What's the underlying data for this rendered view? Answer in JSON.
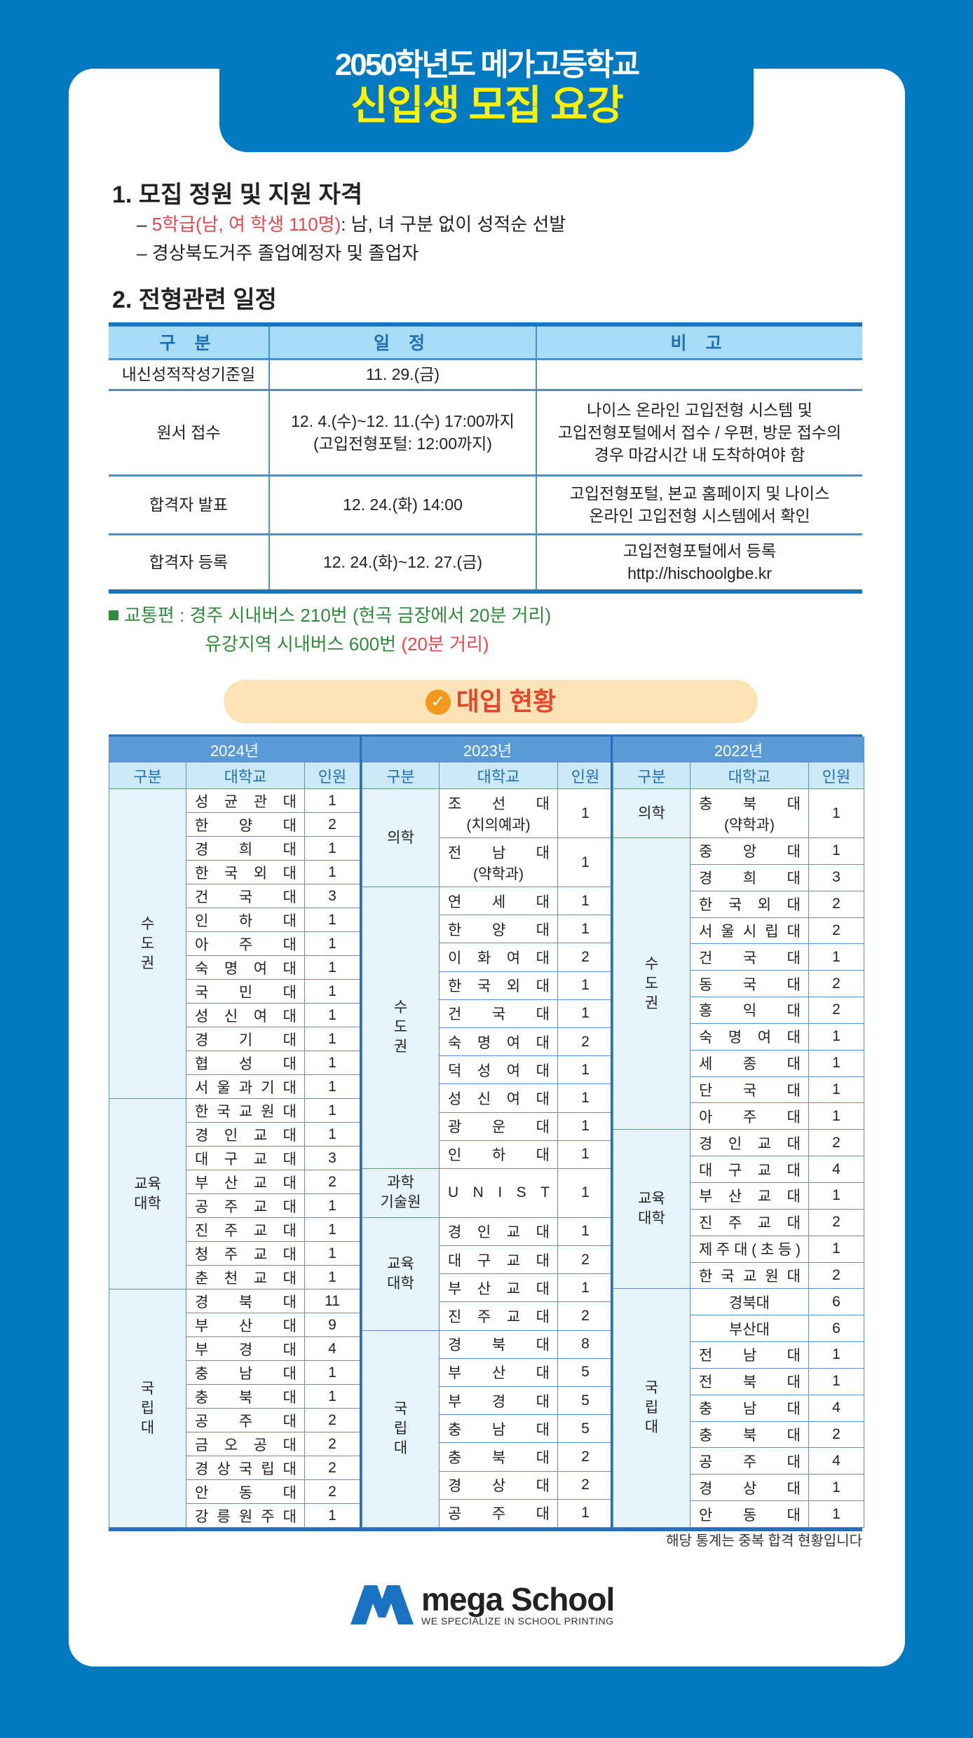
{
  "header": {
    "line1": "2050학년도 메가고등학교",
    "line2": "신입생 모집 요강"
  },
  "section1": {
    "title": "1. 모집 정원 및 지원 자격",
    "item1_red": "5학급(남, 여 학생 110명)",
    "item1_rest": ": 남, 녀 구분 없이 성적순 선발",
    "item2": "경상북도거주 졸업예정자 및 졸업자",
    "dash": "–"
  },
  "section2": {
    "title": "2. 전형관련 일정",
    "headers": [
      "구 분",
      "일 정",
      "비 고"
    ],
    "rows": [
      {
        "label": "내신성적작성기준일",
        "schedule": "11. 29.(금)",
        "note": ""
      },
      {
        "label": "원서 접수",
        "schedule": "12. 4.(수)~12. 11.(수) 17:00까지\n(고입전형포털: 12:00까지)",
        "note": "나이스 온라인 고입전형 시스템 및\n고입전형포털에서 접수 / 우편, 방문 접수의\n경우 마감시간 내 도착하여야 함"
      },
      {
        "label": "합격자 발표",
        "schedule": "12. 24.(화) 14:00",
        "note": "고입전형포털, 본교 홈페이지 및 나이스\n온라인 고입전형 시스템에서 확인"
      },
      {
        "label": "합격자 등록",
        "schedule": "12. 24.(화)~12. 27.(금)",
        "note": "고입전형포털에서 등록\nhttp://hischoolgbe.kr"
      }
    ]
  },
  "transport": {
    "label": "교통편 : ",
    "line1": "경주 시내버스 210번 (현곡 금장에서 20분 거리)",
    "line2_green": "유강지역 시내버스 600번 ",
    "line2_red": "(20분 거리)"
  },
  "admissions": {
    "title": "대입 현황",
    "icon": "check-circle-icon",
    "columns": [
      "구분",
      "대학교",
      "인원"
    ],
    "years": [
      {
        "year": "2024년",
        "groups": [
          {
            "label": "수\n도\n권",
            "entries": [
              {
                "name": "성균관대",
                "count": "1"
              },
              {
                "name": "한양대",
                "count": "2"
              },
              {
                "name": "경희대",
                "count": "1"
              },
              {
                "name": "한국외대",
                "count": "1"
              },
              {
                "name": "건국대",
                "count": "3"
              },
              {
                "name": "인하대",
                "count": "1"
              },
              {
                "name": "아주대",
                "count": "1"
              },
              {
                "name": "숙명여대",
                "count": "1"
              },
              {
                "name": "국민대",
                "count": "1"
              },
              {
                "name": "성신여대",
                "count": "1"
              },
              {
                "name": "경기대",
                "count": "1"
              },
              {
                "name": "협성대",
                "count": "1"
              },
              {
                "name": "서울과기대",
                "count": "1"
              }
            ]
          },
          {
            "label": "교육\n대학",
            "entries": [
              {
                "name": "한국교원대",
                "count": "1"
              },
              {
                "name": "경인교대",
                "count": "1"
              },
              {
                "name": "대구교대",
                "count": "3"
              },
              {
                "name": "부산교대",
                "count": "2"
              },
              {
                "name": "공주교대",
                "count": "1"
              },
              {
                "name": "진주교대",
                "count": "1"
              },
              {
                "name": "청주교대",
                "count": "1"
              },
              {
                "name": "춘천교대",
                "count": "1"
              }
            ]
          },
          {
            "label": "국\n립\n대",
            "entries": [
              {
                "name": "경북대",
                "count": "11"
              },
              {
                "name": "부산대",
                "count": "9"
              },
              {
                "name": "부경대",
                "count": "4"
              },
              {
                "name": "충남대",
                "count": "1"
              },
              {
                "name": "충북대",
                "count": "1"
              },
              {
                "name": "공주대",
                "count": "2"
              },
              {
                "name": "금오공대",
                "count": "2"
              },
              {
                "name": "경상국립대",
                "count": "2"
              },
              {
                "name": "안동대",
                "count": "2"
              },
              {
                "name": "강릉원주대",
                "count": "1"
              }
            ]
          }
        ]
      },
      {
        "year": "2023년",
        "groups": [
          {
            "label": "의학",
            "entries": [
              {
                "name": "조선대",
                "sub": "(치의예과)",
                "count": "1"
              },
              {
                "name": "전남대",
                "sub": "(약학과)",
                "count": "1"
              }
            ]
          },
          {
            "label": "수\n도\n권",
            "entries": [
              {
                "name": "연세대",
                "count": "1"
              },
              {
                "name": "한양대",
                "count": "1"
              },
              {
                "name": "이화여대",
                "count": "2"
              },
              {
                "name": "한국외대",
                "count": "1"
              },
              {
                "name": "건국대",
                "count": "1"
              },
              {
                "name": "숙명여대",
                "count": "2"
              },
              {
                "name": "덕성여대",
                "count": "1"
              },
              {
                "name": "성신여대",
                "count": "1"
              },
              {
                "name": "광운대",
                "count": "1"
              },
              {
                "name": "인하대",
                "count": "1"
              }
            ]
          },
          {
            "label": "과학\n기술원",
            "entries": [
              {
                "name": "UNIST",
                "count": "1",
                "tall": true
              }
            ]
          },
          {
            "label": "교육\n대학",
            "entries": [
              {
                "name": "경인교대",
                "count": "1"
              },
              {
                "name": "대구교대",
                "count": "2"
              },
              {
                "name": "부산교대",
                "count": "1"
              },
              {
                "name": "진주교대",
                "count": "2"
              }
            ]
          },
          {
            "label": "국\n립\n대",
            "entries": [
              {
                "name": "경북대",
                "count": "8"
              },
              {
                "name": "부산대",
                "count": "5"
              },
              {
                "name": "부경대",
                "count": "5"
              },
              {
                "name": "충남대",
                "count": "5"
              },
              {
                "name": "충북대",
                "count": "2"
              },
              {
                "name": "경상대",
                "count": "2"
              },
              {
                "name": "공주대",
                "count": "1"
              }
            ]
          }
        ]
      },
      {
        "year": "2022년",
        "groups": [
          {
            "label": "의학",
            "entries": [
              {
                "name": "충북대",
                "sub": "(약학과)",
                "count": "1"
              }
            ]
          },
          {
            "label": "수\n도\n권",
            "entries": [
              {
                "name": "중앙대",
                "count": "1"
              },
              {
                "name": "경희대",
                "count": "3"
              },
              {
                "name": "한국외대",
                "count": "2"
              },
              {
                "name": "서울시립대",
                "count": "2"
              },
              {
                "name": "건국대",
                "count": "1"
              },
              {
                "name": "동국대",
                "count": "2"
              },
              {
                "name": "홍익대",
                "count": "2"
              },
              {
                "name": "숙명여대",
                "count": "1"
              },
              {
                "name": "세종대",
                "count": "1"
              },
              {
                "name": "단국대",
                "count": "1"
              },
              {
                "name": "아주대",
                "count": "1"
              }
            ]
          },
          {
            "label": "교육\n대학",
            "entries": [
              {
                "name": "경인교대",
                "count": "2"
              },
              {
                "name": "대구교대",
                "count": "4"
              },
              {
                "name": "부산교대",
                "count": "1"
              },
              {
                "name": "진주교대",
                "count": "2"
              },
              {
                "name": "제주대(초등)",
                "count": "1"
              },
              {
                "name": "한국교원대",
                "count": "2"
              }
            ]
          },
          {
            "label": "국\n립\n대",
            "entries": [
              {
                "name": "경북대",
                "count": "6",
                "center": true
              },
              {
                "name": "부산대",
                "count": "6",
                "center": true
              },
              {
                "name": "전남대",
                "count": "1"
              },
              {
                "name": "전북대",
                "count": "1"
              },
              {
                "name": "충남대",
                "count": "4"
              },
              {
                "name": "충북대",
                "count": "2"
              },
              {
                "name": "공주대",
                "count": "4"
              },
              {
                "name": "경상대",
                "count": "1"
              },
              {
                "name": "안동대",
                "count": "1"
              }
            ]
          }
        ]
      }
    ],
    "note": "해당 통계는 중복 합격 현황입니다"
  },
  "logo": {
    "mark_text": "mega",
    "name": "mega School",
    "tagline": "WE SPECIALIZE IN SCHOOL PRINTING"
  },
  "colors": {
    "background": "#0079c1",
    "title_yellow": "#fff200",
    "accent_red": "#e5484d",
    "accent_green": "#2e8b3a",
    "table_header": "#a8ddf7",
    "year_header": "#5b9bd5"
  }
}
